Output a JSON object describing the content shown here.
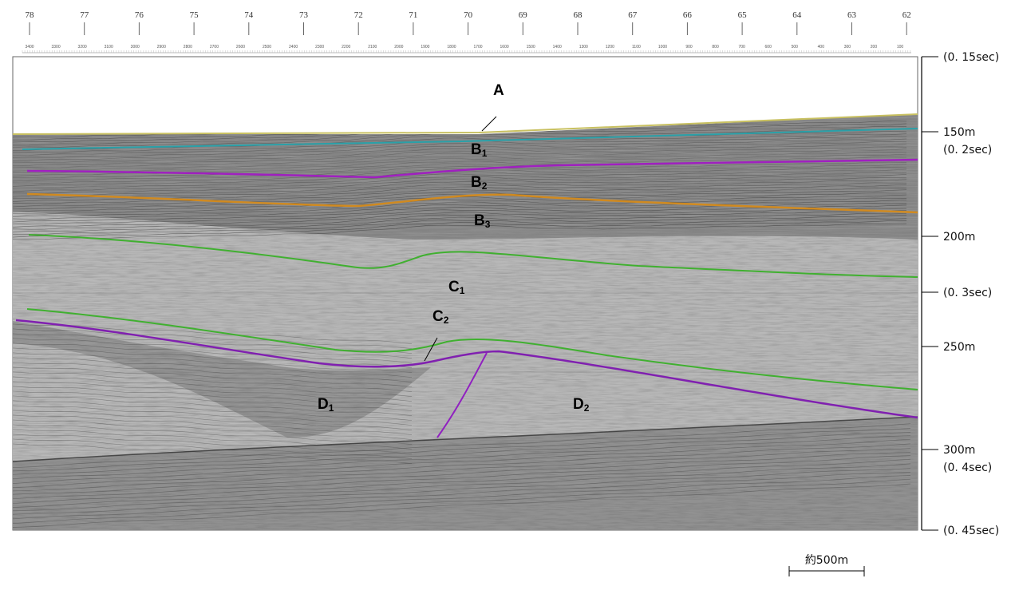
{
  "ruler": {
    "shotpoints": [
      "78",
      "77",
      "76",
      "75",
      "74",
      "73",
      "72",
      "71",
      "70",
      "69",
      "68",
      "67",
      "66",
      "65",
      "64",
      "63",
      "62"
    ],
    "distances": [
      "3400",
      "3300",
      "3200",
      "3100",
      "3000",
      "2900",
      "2800",
      "2700",
      "2600",
      "2500",
      "2400",
      "2300",
      "2200",
      "2100",
      "2000",
      "1900",
      "1800",
      "1700",
      "1600",
      "1500",
      "1400",
      "1300",
      "1200",
      "1100",
      "1000",
      "900",
      "800",
      "700",
      "600",
      "500",
      "400",
      "300",
      "200",
      "100"
    ]
  },
  "units": [
    {
      "id": "A",
      "main": "A",
      "sub": ""
    },
    {
      "id": "B1",
      "main": "B",
      "sub": "1"
    },
    {
      "id": "B2",
      "main": "B",
      "sub": "2"
    },
    {
      "id": "B3",
      "main": "B",
      "sub": "3"
    },
    {
      "id": "C1",
      "main": "C",
      "sub": "1"
    },
    {
      "id": "C2",
      "main": "C",
      "sub": "2"
    },
    {
      "id": "D1",
      "main": "D",
      "sub": "1"
    },
    {
      "id": "D2",
      "main": "D",
      "sub": "2"
    }
  ],
  "horizon_colors": {
    "A": "#c8c060",
    "B1": "#2aa0a8",
    "B2": "#a020c0",
    "B3": "#d08a20",
    "C1": "#40b030",
    "C2": "#40b030",
    "D": "#8020b0",
    "fault": "#9020c0"
  },
  "depth_scale": [
    {
      "depth": "",
      "time": "(0. 15sec)"
    },
    {
      "depth": "150m",
      "time": "(0. 2sec)"
    },
    {
      "depth": "200m",
      "time": ""
    },
    {
      "depth": "",
      "time": "(0. 3sec)"
    },
    {
      "depth": "250m",
      "time": ""
    },
    {
      "depth": "300m",
      "time": "(0. 4sec)"
    },
    {
      "depth": "",
      "time": "(0. 45sec)"
    }
  ],
  "scale_bar": {
    "label": "約500m"
  }
}
